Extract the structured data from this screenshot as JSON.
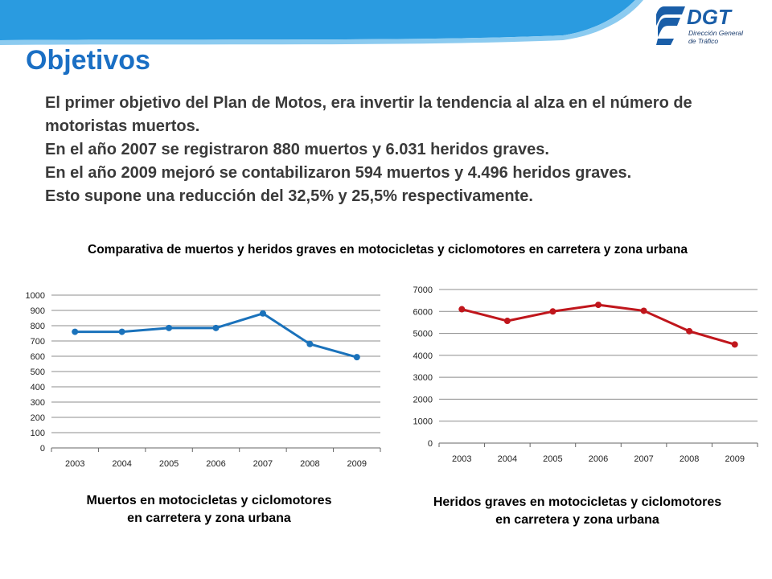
{
  "header": {
    "title": "Objetivos",
    "logo": {
      "brand": "DGT",
      "line1": "Dirección General",
      "line2": "de Tráfico"
    },
    "banner_color": "#2a9be0"
  },
  "intro": {
    "line1": "El primer objetivo del Plan de Motos, era invertir la tendencia al alza en el número de motoristas muertos.",
    "line2": "En el año 2007 se registraron 880 muertos y 6.031 heridos graves.",
    "line3": "En el año 2009 mejoró se contabilizaron 594 muertos y 4.496 heridos graves.",
    "line4": "Esto supone una reducción del 32,5% y 25,5% respectivamente."
  },
  "subtitle": "Comparativa de muertos y heridos graves en motocicletas y ciclomotores en carretera y zona urbana",
  "captions": {
    "muertos": [
      "Muertos en motocicletas y ciclomotores",
      "en carretera y zona urbana"
    ],
    "heridos": [
      "Heridos graves en motocicletas y ciclomotores",
      "en carretera y zona urbana"
    ]
  },
  "chart_data": [
    {
      "type": "line",
      "title": "Muertos en motocicletas y ciclomotores en carretera y zona urbana",
      "categories": [
        "2003",
        "2004",
        "2005",
        "2006",
        "2007",
        "2008",
        "2009"
      ],
      "series": [
        {
          "values": [
            760,
            760,
            785,
            785,
            880,
            680,
            594
          ],
          "color": "#1a72bb"
        }
      ],
      "ylim": [
        0,
        1000
      ],
      "ystep": 100,
      "grid": true,
      "legend": "none"
    },
    {
      "type": "line",
      "title": "Heridos graves en motocicletas y ciclomotores en carretera y zona urbana",
      "categories": [
        "2003",
        "2004",
        "2005",
        "2006",
        "2007",
        "2008",
        "2009"
      ],
      "series": [
        {
          "values": [
            6100,
            5570,
            6000,
            6300,
            6031,
            5100,
            4496
          ],
          "color": "#c0161c"
        }
      ],
      "ylim": [
        0,
        7000
      ],
      "ystep": 1000,
      "grid": true,
      "legend": "none"
    }
  ]
}
